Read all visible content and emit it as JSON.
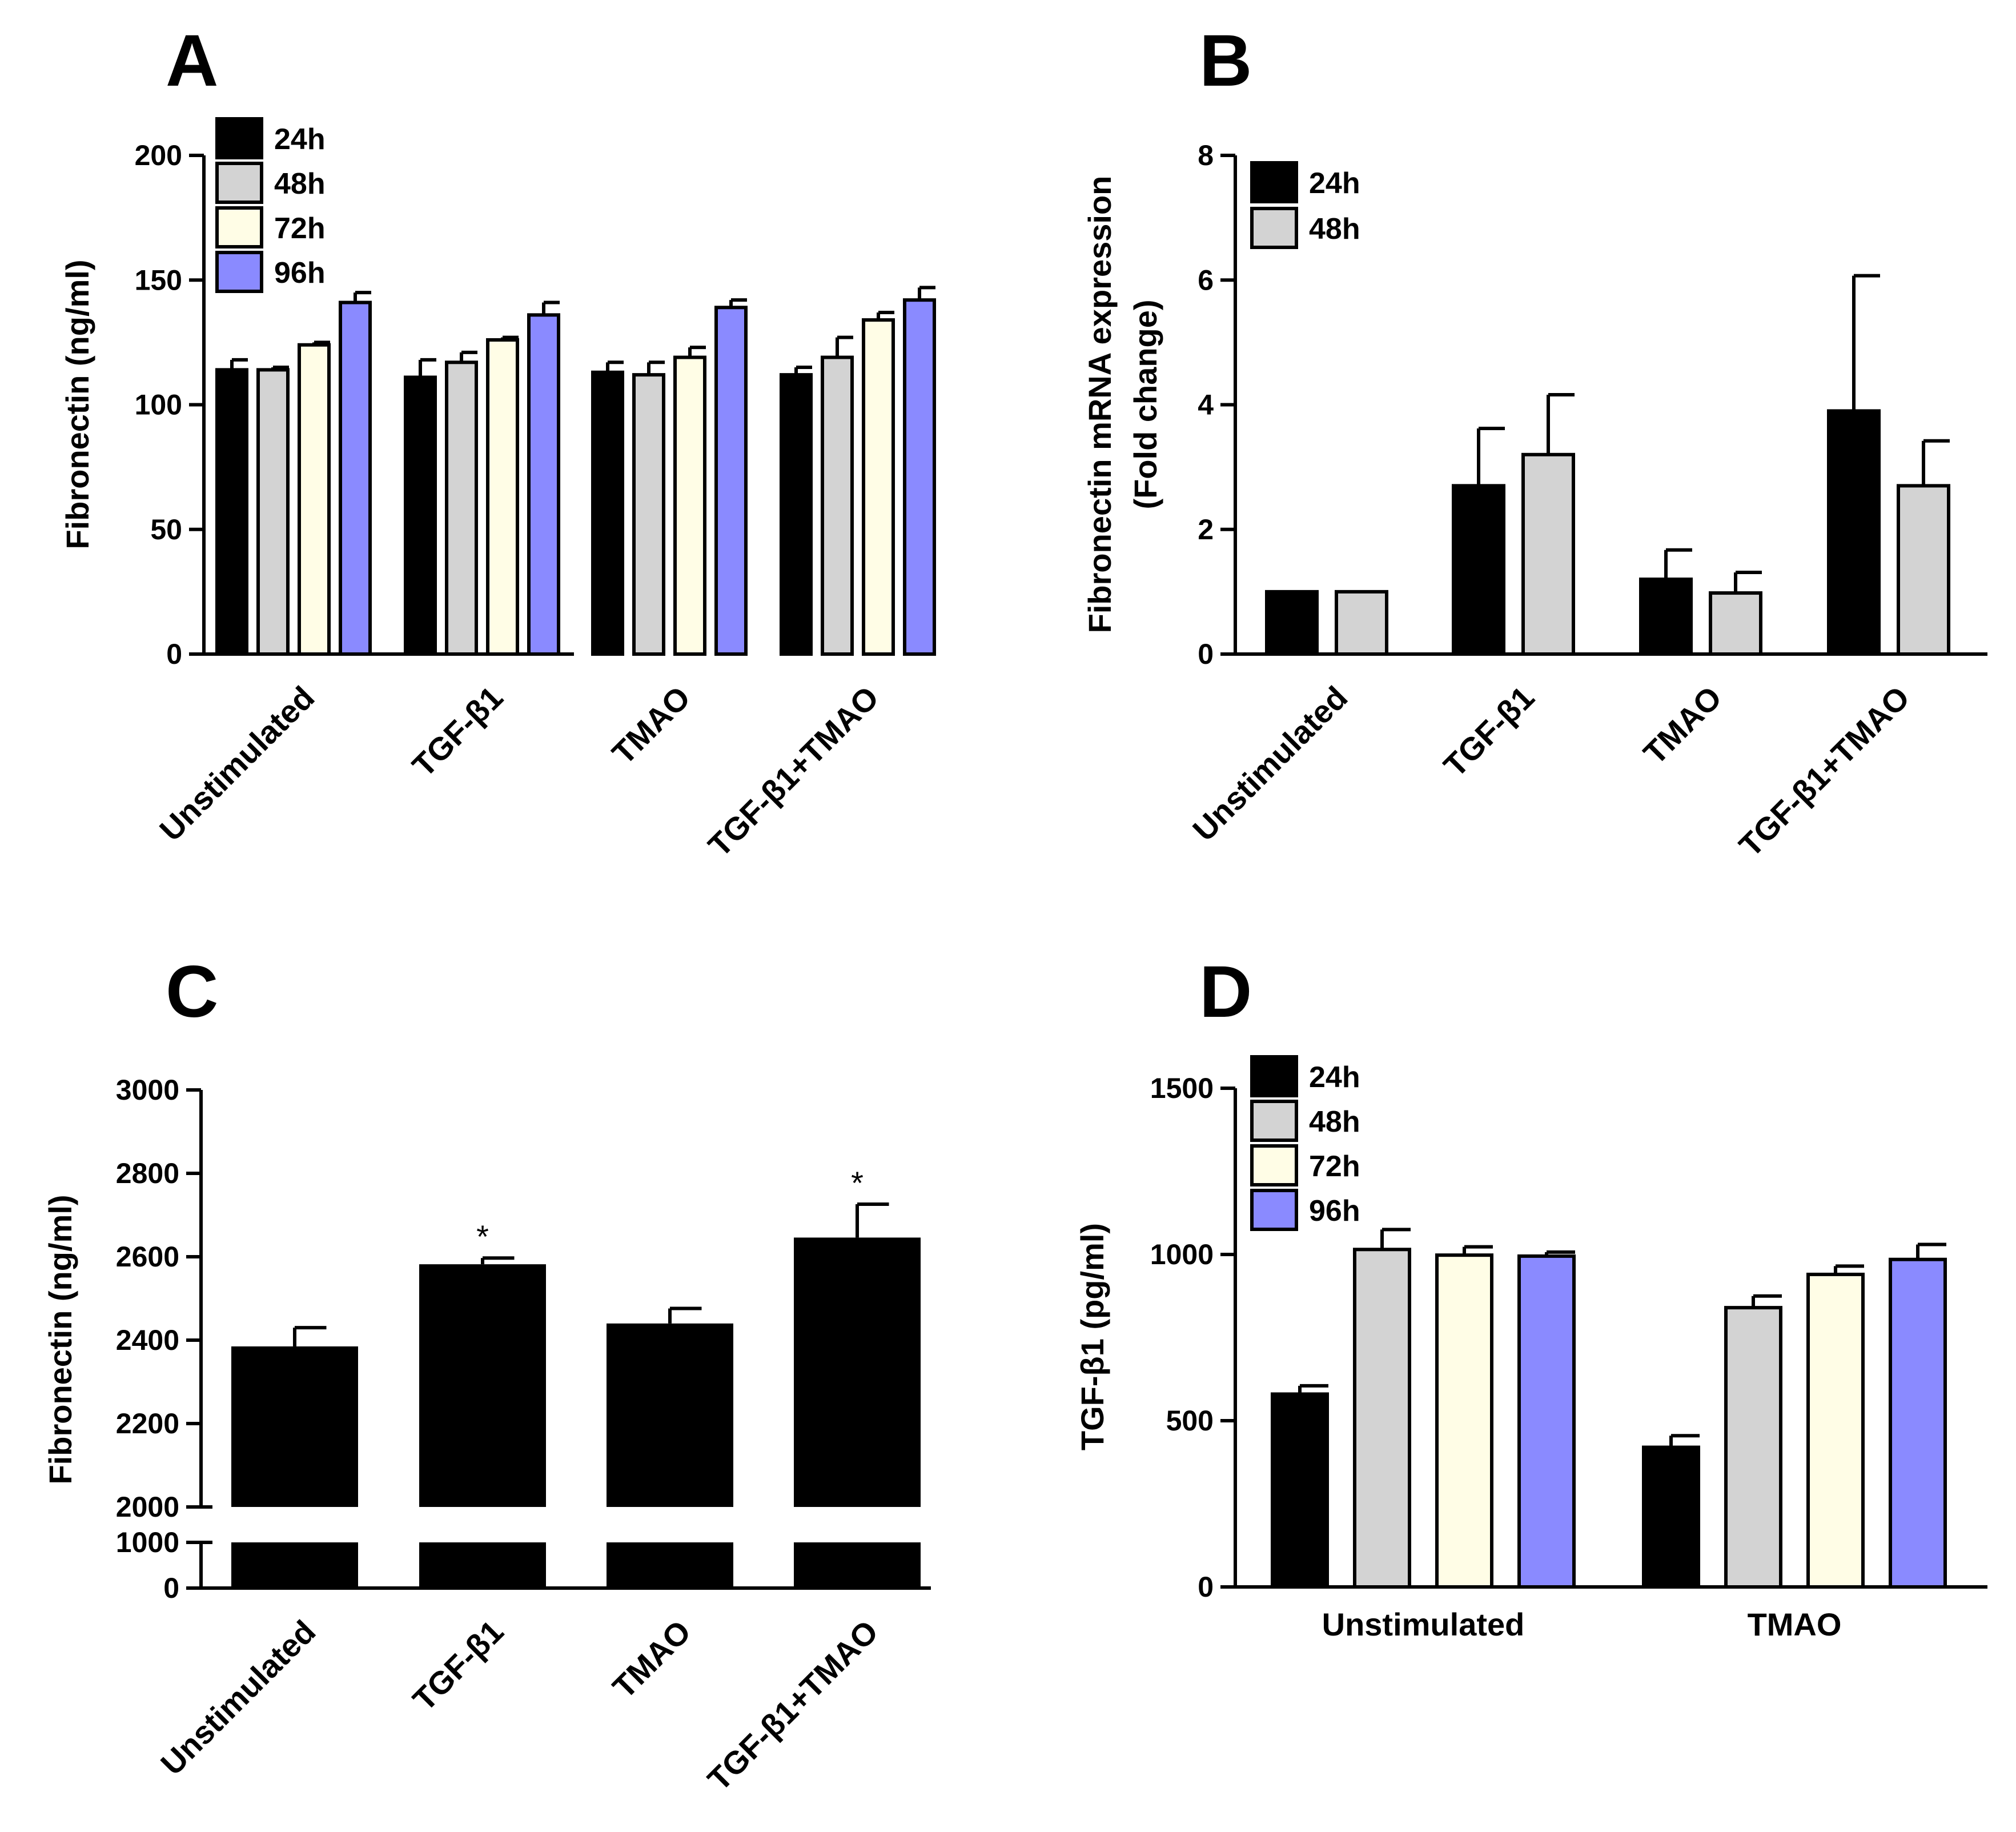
{
  "chart_data": [
    {
      "panel": "A",
      "type": "bar",
      "ylabel": "Fibronectin (ng/ml)",
      "ylim": [
        0,
        200
      ],
      "yticks": [
        0,
        50,
        100,
        150,
        200
      ],
      "categories": [
        "Unstimulated",
        "TGF-β1",
        "TMAO",
        "TGF-β1+TMAO"
      ],
      "series": [
        {
          "name": "24h",
          "color": "#000000",
          "values": [
            114,
            111,
            113,
            112
          ],
          "errors": [
            4,
            7,
            4,
            3
          ]
        },
        {
          "name": "48h",
          "color": "#d3d3d3",
          "values": [
            114,
            117,
            112,
            119
          ],
          "errors": [
            1,
            4,
            5,
            8
          ]
        },
        {
          "name": "72h",
          "color": "#fffde6",
          "values": [
            124,
            126,
            119,
            134
          ],
          "errors": [
            1,
            1,
            4,
            3
          ]
        },
        {
          "name": "96h",
          "color": "#8a8aff",
          "values": [
            141,
            136,
            139,
            142
          ],
          "errors": [
            4,
            5,
            3,
            5
          ]
        }
      ]
    },
    {
      "panel": "B",
      "type": "bar",
      "ylabel": [
        "Fibronectin mRNA expression",
        "(Fold change)"
      ],
      "ylim": [
        0,
        8
      ],
      "yticks": [
        0,
        2,
        4,
        6,
        8
      ],
      "categories": [
        "Unstimulated",
        "TGF-β1",
        "TMAO",
        "TGF-β1+TMAO"
      ],
      "series": [
        {
          "name": "24h",
          "color": "#000000",
          "values": [
            1.0,
            2.7,
            1.2,
            3.9
          ],
          "errors": [
            0,
            0.92,
            0.47,
            2.17
          ]
        },
        {
          "name": "48h",
          "color": "#d3d3d3",
          "values": [
            1.0,
            3.2,
            0.98,
            2.7
          ],
          "errors": [
            0,
            0.96,
            0.33,
            0.72
          ]
        }
      ]
    },
    {
      "panel": "C",
      "type": "bar",
      "ylabel": "Fibronectin (ng/ml)",
      "broken_axis": true,
      "lower_ylim": [
        0,
        1000
      ],
      "lower_yticks": [
        0,
        1000
      ],
      "upper_ylim": [
        2000,
        3000
      ],
      "upper_yticks": [
        2000,
        2200,
        2400,
        2600,
        2800,
        3000
      ],
      "categories": [
        "Unstimulated",
        "TGF-β1",
        "TMAO",
        "TGF-β1+TMAO"
      ],
      "series": [
        {
          "name": "Fibronectin",
          "color": "#000000",
          "values": [
            2385,
            2582,
            2440,
            2646
          ],
          "errors": [
            45,
            15,
            36,
            80
          ]
        }
      ],
      "annotations": [
        "",
        "*",
        "",
        "*"
      ]
    },
    {
      "panel": "D",
      "type": "bar",
      "ylabel": "TGF-β1 (pg/ml)",
      "ylim": [
        0,
        1500
      ],
      "yticks": [
        0,
        500,
        1000,
        1500
      ],
      "categories": [
        "Unstimulated",
        "TMAO"
      ],
      "series": [
        {
          "name": "24h",
          "color": "#000000",
          "values": [
            580,
            420
          ],
          "errors": [
            25,
            35
          ]
        },
        {
          "name": "48h",
          "color": "#d3d3d3",
          "values": [
            1015,
            840
          ],
          "errors": [
            60,
            35
          ]
        },
        {
          "name": "72h",
          "color": "#fffde6",
          "values": [
            998,
            940
          ],
          "errors": [
            25,
            25
          ]
        },
        {
          "name": "96h",
          "color": "#8a8aff",
          "values": [
            995,
            985
          ],
          "errors": [
            12,
            45
          ]
        }
      ]
    }
  ]
}
